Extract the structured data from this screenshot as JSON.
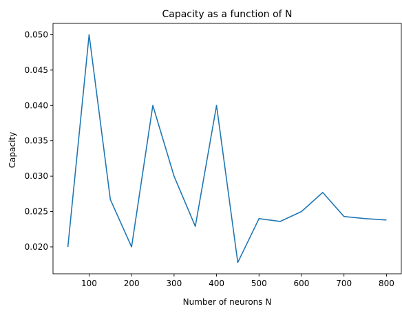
{
  "chart_data": {
    "type": "line",
    "title": "Capacity as a function of N",
    "xlabel": "Number of neurons N",
    "ylabel": "Capacity",
    "xlim": [
      15,
      835
    ],
    "ylim": [
      0.0162,
      0.0516
    ],
    "xticks": [
      100,
      200,
      300,
      400,
      500,
      600,
      700,
      800
    ],
    "xtick_labels": [
      "100",
      "200",
      "300",
      "400",
      "500",
      "600",
      "700",
      "800"
    ],
    "yticks": [
      0.02,
      0.025,
      0.03,
      0.035,
      0.04,
      0.045,
      0.05
    ],
    "ytick_labels": [
      "0.020",
      "0.025",
      "0.030",
      "0.035",
      "0.040",
      "0.045",
      "0.050"
    ],
    "grid": false,
    "series": [
      {
        "color": "#1f77b4",
        "x": [
          50,
          100,
          150,
          200,
          250,
          300,
          350,
          400,
          450,
          500,
          550,
          600,
          650,
          700,
          750,
          800
        ],
        "y": [
          0.02,
          0.05,
          0.0267,
          0.02,
          0.04,
          0.03,
          0.0229,
          0.04,
          0.0178,
          0.024,
          0.0236,
          0.025,
          0.0277,
          0.0243,
          0.024,
          0.0238
        ]
      }
    ]
  }
}
